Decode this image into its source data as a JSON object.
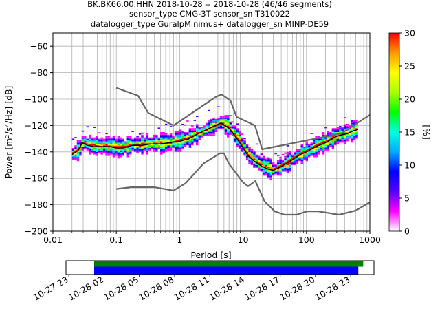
{
  "title": {
    "line1": "BK.BK66.00.HHN   2018-10-28 -- 2018-10-28  (46/46 segments)",
    "line2": "sensor_type CMG-3T sensor_sn T310022",
    "line3": "datalogger_type GuralpMinimus+ datalogger_sn MINP-DE59"
  },
  "chart_data": [
    {
      "type": "heatmap",
      "title": "BK.BK66.00.HHN   2018-10-28 -- 2018-10-28  (46/46 segments)",
      "xlabel": "Period [s]",
      "ylabel": "Power [m²/s⁴/Hz] [dB]",
      "xscale": "log",
      "xlim": [
        0.01,
        1000
      ],
      "ylim": [
        -200,
        -50
      ],
      "grid": true,
      "x_ticks": [
        {
          "value": 0.01,
          "label": "0.01"
        },
        {
          "value": 0.1,
          "label": "0.1"
        },
        {
          "value": 1,
          "label": "1"
        },
        {
          "value": 10,
          "label": "10"
        },
        {
          "value": 100,
          "label": "100"
        },
        {
          "value": 1000,
          "label": "1000"
        }
      ],
      "y_ticks": [
        {
          "value": -60,
          "label": "−60"
        },
        {
          "value": -80,
          "label": "−80"
        },
        {
          "value": -100,
          "label": "−100"
        },
        {
          "value": -120,
          "label": "−120"
        },
        {
          "value": -140,
          "label": "−140"
        },
        {
          "value": -160,
          "label": "−160"
        },
        {
          "value": -180,
          "label": "−180"
        },
        {
          "value": -200,
          "label": "−200"
        }
      ],
      "colorbar": {
        "label": "[%]",
        "range": [
          0,
          30
        ],
        "ticks": [
          "0",
          "5",
          "10",
          "15",
          "20",
          "25",
          "30"
        ],
        "colors": [
          "#ffffff",
          "#ff00ff",
          "#5500ff",
          "#0000ff",
          "#00aaff",
          "#00ffdd",
          "#00ff00",
          "#aaff00",
          "#ffff00",
          "#ff9900",
          "#ff0000"
        ]
      },
      "noise_models": {
        "color": "#666666",
        "nhnm": [
          [
            0.1,
            -91.5
          ],
          [
            0.22,
            -97.4
          ],
          [
            0.32,
            -110.5
          ],
          [
            0.8,
            -120.0
          ],
          [
            3.8,
            -98.0
          ],
          [
            4.6,
            -96.5
          ],
          [
            6.3,
            -101.0
          ],
          [
            7.9,
            -113.5
          ],
          [
            15.4,
            -120.0
          ],
          [
            20.0,
            -138.0
          ],
          [
            354.8,
            -126.0
          ],
          [
            1000,
            -112.0
          ]
        ],
        "nlnm": [
          [
            0.1,
            -168.0
          ],
          [
            0.17,
            -166.7
          ],
          [
            0.4,
            -166.7
          ],
          [
            0.8,
            -169.2
          ],
          [
            1.24,
            -163.7
          ],
          [
            2.4,
            -148.6
          ],
          [
            4.3,
            -141.1
          ],
          [
            5.0,
            -141.1
          ],
          [
            6.0,
            -149.0
          ],
          [
            10.0,
            -163.0
          ],
          [
            12.0,
            -166.0
          ],
          [
            15.6,
            -162.0
          ],
          [
            21.9,
            -177.5
          ],
          [
            31.6,
            -185.0
          ],
          [
            45.0,
            -187.5
          ],
          [
            70.0,
            -187.5
          ],
          [
            101.0,
            -185.0
          ],
          [
            154.0,
            -185.0
          ],
          [
            328.0,
            -187.5
          ],
          [
            600.0,
            -184.4
          ],
          [
            1000,
            -178.0
          ]
        ]
      },
      "mode_line": {
        "color": "#000000",
        "points": [
          [
            0.02,
            -142
          ],
          [
            0.025,
            -139
          ],
          [
            0.029,
            -133
          ],
          [
            0.035,
            -135
          ],
          [
            0.045,
            -136
          ],
          [
            0.06,
            -136
          ],
          [
            0.08,
            -136
          ],
          [
            0.1,
            -137
          ],
          [
            0.13,
            -137
          ],
          [
            0.18,
            -135
          ],
          [
            0.25,
            -135
          ],
          [
            0.35,
            -134
          ],
          [
            0.5,
            -134
          ],
          [
            0.7,
            -133
          ],
          [
            1.0,
            -132
          ],
          [
            1.4,
            -130
          ],
          [
            2.0,
            -126
          ],
          [
            3.0,
            -122
          ],
          [
            4.5,
            -118
          ],
          [
            6.0,
            -122
          ],
          [
            8.0,
            -130
          ],
          [
            10.0,
            -137
          ],
          [
            12.0,
            -143
          ],
          [
            15.0,
            -147
          ],
          [
            20.0,
            -151
          ],
          [
            25.0,
            -153
          ],
          [
            30.0,
            -154
          ],
          [
            40.0,
            -151
          ],
          [
            60.0,
            -146
          ],
          [
            80.0,
            -142
          ],
          [
            100.0,
            -140
          ],
          [
            140.0,
            -136
          ],
          [
            200.0,
            -133
          ],
          [
            300.0,
            -128
          ],
          [
            450.0,
            -126
          ],
          [
            550.0,
            -124
          ],
          [
            650.0,
            -123
          ]
        ]
      },
      "mean_line": {
        "color": "#ff0000",
        "points": [
          [
            0.02,
            -141
          ],
          [
            0.025,
            -138
          ],
          [
            0.029,
            -133
          ],
          [
            0.035,
            -134
          ],
          [
            0.045,
            -135
          ],
          [
            0.06,
            -136
          ],
          [
            0.08,
            -136
          ],
          [
            0.1,
            -136
          ],
          [
            0.13,
            -136
          ],
          [
            0.18,
            -135
          ],
          [
            0.25,
            -134
          ],
          [
            0.35,
            -134
          ],
          [
            0.5,
            -134
          ],
          [
            0.7,
            -133
          ],
          [
            1.0,
            -131
          ],
          [
            1.4,
            -129
          ],
          [
            2.0,
            -126
          ],
          [
            3.0,
            -122
          ],
          [
            4.5,
            -119
          ],
          [
            6.0,
            -122
          ],
          [
            8.0,
            -129
          ],
          [
            10.0,
            -136
          ],
          [
            12.0,
            -142
          ],
          [
            15.0,
            -147
          ],
          [
            20.0,
            -151
          ],
          [
            25.0,
            -153
          ],
          [
            30.0,
            -153
          ],
          [
            40.0,
            -150
          ],
          [
            60.0,
            -145
          ],
          [
            80.0,
            -141
          ],
          [
            100.0,
            -139
          ],
          [
            140.0,
            -135
          ],
          [
            200.0,
            -132
          ],
          [
            300.0,
            -128
          ],
          [
            450.0,
            -126
          ],
          [
            550.0,
            -124
          ],
          [
            650.0,
            -123
          ]
        ]
      }
    },
    {
      "type": "timeline",
      "series": [
        {
          "color": "#008000",
          "start": "2018-10-28 01:09",
          "end": "2018-10-29 00:04"
        },
        {
          "color": "#0000ff",
          "start": "2018-10-28 01:09",
          "end": "2018-10-28 23:39"
        }
      ],
      "xlim": [
        "2018-10-27 22:45",
        "2018-10-29 00:59"
      ],
      "x_ticks": [
        {
          "value": "2018-10-27 23:00",
          "label": "10-27 23"
        },
        {
          "value": "2018-10-28 02:00",
          "label": "10-28 02"
        },
        {
          "value": "2018-10-28 05:00",
          "label": "10-28 05"
        },
        {
          "value": "2018-10-28 08:00",
          "label": "10-28 08"
        },
        {
          "value": "2018-10-28 11:00",
          "label": "10-28 11"
        },
        {
          "value": "2018-10-28 14:00",
          "label": "10-28 14"
        },
        {
          "value": "2018-10-28 17:00",
          "label": "10-28 17"
        },
        {
          "value": "2018-10-28 20:00",
          "label": "10-28 20"
        },
        {
          "value": "2018-10-28 23:00",
          "label": "10-28 23"
        }
      ]
    }
  ]
}
